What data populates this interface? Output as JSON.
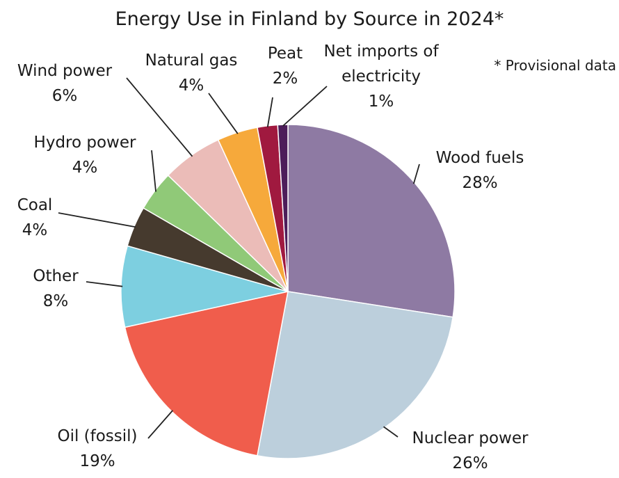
{
  "chart_data": {
    "type": "pie",
    "title": "Energy Use in Finland by Source in 2024*",
    "annotation": "* Provisional data",
    "categories": [
      "Wood fuels",
      "Nuclear power",
      "Oil (fossil)",
      "Other",
      "Coal",
      "Hydro power",
      "Wind power",
      "Natural gas",
      "Peat",
      "Net imports of electricity"
    ],
    "values": [
      28,
      26,
      19,
      8,
      4,
      4,
      6,
      4,
      2,
      1
    ],
    "value_labels": [
      "28%",
      "26%",
      "19%",
      "8%",
      "4%",
      "4%",
      "6%",
      "4%",
      "2%",
      "1%"
    ],
    "colors": [
      "#8e7aa3",
      "#bccfdc",
      "#f05d4c",
      "#7dcfe0",
      "#463a2e",
      "#90c978",
      "#ebbcb8",
      "#f6a93b",
      "#a0193f",
      "#4d1d5a"
    ]
  }
}
